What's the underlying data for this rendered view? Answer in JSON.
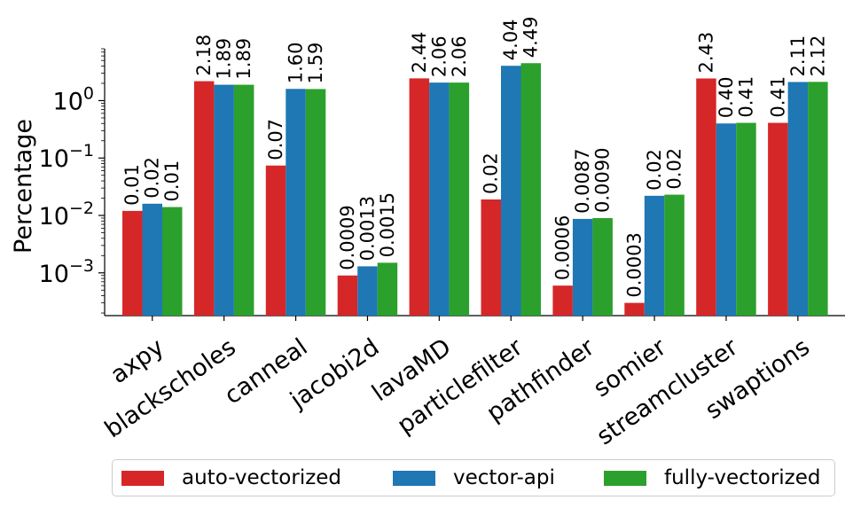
{
  "chart_data": {
    "type": "bar",
    "xlabel": "",
    "ylabel": "Percentage",
    "yscale": "log",
    "ylim": [
      0.00018,
      8
    ],
    "yticks": [
      {
        "value": 0.001,
        "base": "10",
        "exp": "−3"
      },
      {
        "value": 0.01,
        "base": "10",
        "exp": "−2"
      },
      {
        "value": 0.1,
        "base": "10",
        "exp": "−1"
      },
      {
        "value": 1,
        "base": "10",
        "exp": "0"
      }
    ],
    "categories": [
      "axpy",
      "blackscholes",
      "canneal",
      "jacobi2d",
      "lavaMD",
      "particlefilter",
      "pathfinder",
      "somier",
      "streamcluster",
      "swaptions"
    ],
    "series": [
      {
        "name": "auto-vectorized",
        "color": "#d62728",
        "values": [
          0.012,
          2.18,
          0.074,
          0.0009,
          2.44,
          0.019,
          0.0006,
          0.0003,
          2.43,
          0.41
        ],
        "labels": [
          "0.01",
          "2.18",
          "0.07",
          "0.0009",
          "2.44",
          "0.02",
          "0.0006",
          "0.0003",
          "2.43",
          "0.41"
        ]
      },
      {
        "name": "vector-api",
        "color": "#1f77b4",
        "values": [
          0.016,
          1.89,
          1.6,
          0.0013,
          2.06,
          4.04,
          0.0087,
          0.022,
          0.4,
          2.11
        ],
        "labels": [
          "0.02",
          "1.89",
          "1.60",
          "0.0013",
          "2.06",
          "4.04",
          "0.0087",
          "0.02",
          "0.40",
          "2.11"
        ]
      },
      {
        "name": "fully-vectorized",
        "color": "#2ca02c",
        "values": [
          0.014,
          1.89,
          1.59,
          0.0015,
          2.06,
          4.49,
          0.009,
          0.023,
          0.41,
          2.12
        ],
        "labels": [
          "0.01",
          "1.89",
          "1.59",
          "0.0015",
          "2.06",
          "4.49",
          "0.0090",
          "0.02",
          "0.41",
          "2.12"
        ]
      }
    ],
    "legend": {
      "placement": "bottom-center",
      "ncol": 3
    },
    "grid": false
  }
}
